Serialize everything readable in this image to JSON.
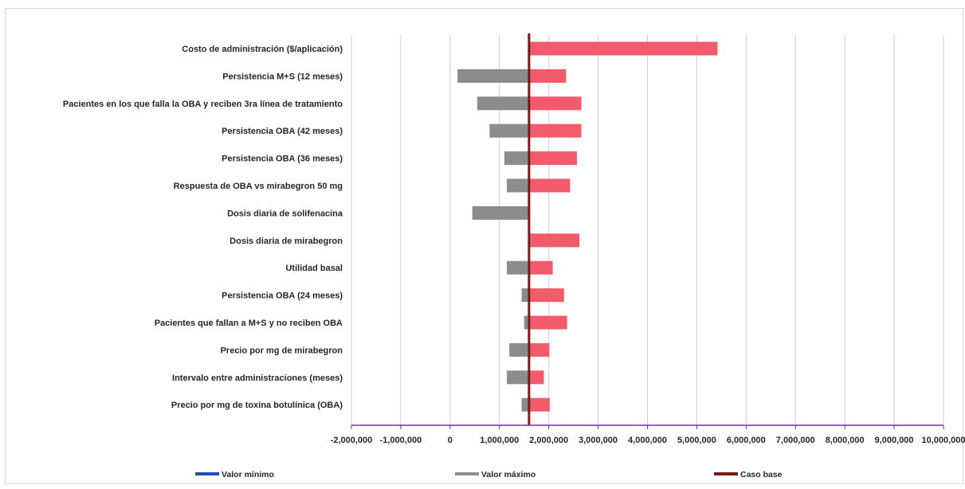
{
  "chart_data": {
    "type": "bar",
    "orientation": "horizontal",
    "subtype": "tornado",
    "base_case": 1600000,
    "categories": [
      "Costo de administración ($/aplicación)",
      "Persistencia M+S (12 meses)",
      "Pacientes en los que falla la OBA y reciben 3ra línea de tratamiento",
      "Persistencia OBA (42 meses)",
      "Persistencia OBA (36 meses)",
      "Respuesta de OBA vs mirabegron 50 mg",
      "Dosis diaria de solifenacina",
      "Dosis diaria de mirabegron",
      "Utilidad basal",
      "Persistencia OBA (24 meses)",
      "Pacientes que fallan a M+S y no reciben OBA",
      "Precio por mg de mirabegron",
      "Intervalo entre administraciones (meses)",
      "Precio por mg de toxina botulínica (OBA)"
    ],
    "series": [
      {
        "name": "Valor mínimo",
        "color": "#1f4fb5",
        "values": [
          1600000,
          1600000,
          1600000,
          1600000,
          1600000,
          1600000,
          1600000,
          1600000,
          1600000,
          1600000,
          1600000,
          1600000,
          1600000,
          1600000
        ]
      },
      {
        "name": "Valor máximo",
        "color": "#8c8c8c",
        "values": [
          1600000,
          150000,
          550000,
          800000,
          1100000,
          1150000,
          450000,
          1600000,
          1150000,
          1450000,
          1500000,
          1200000,
          1150000,
          1450000
        ]
      },
      {
        "name": "Caso base",
        "color": "#7b1818",
        "values": [
          5420000,
          2350000,
          2660000,
          2660000,
          2570000,
          2430000,
          1600000,
          2620000,
          2080000,
          2310000,
          2370000,
          2010000,
          1900000,
          2020000
        ]
      }
    ],
    "bar_color_high": "#f15b6c",
    "bar_color_low": "#8c8c8c",
    "base_line_color": "#7b1818",
    "axis_color": "#7030a0",
    "xlim": [
      -2000000,
      10000000
    ],
    "xticks": [
      -2000000,
      -1000000,
      0,
      1000000,
      2000000,
      3000000,
      4000000,
      5000000,
      6000000,
      7000000,
      8000000,
      9000000,
      10000000
    ],
    "xtick_labels": [
      "-2,000,000",
      "-1,000,000",
      "0",
      "1,000,000",
      "2,000,000",
      "3,000,000",
      "4,000,000",
      "5,000,000",
      "6,000,000",
      "7,000,000",
      "8,000,000",
      "9,000,000",
      "10,000,000"
    ],
    "grid": true,
    "legend": [
      "Valor mínimo",
      "Valor máximo",
      "Caso base"
    ],
    "legend_position": "bottom"
  }
}
